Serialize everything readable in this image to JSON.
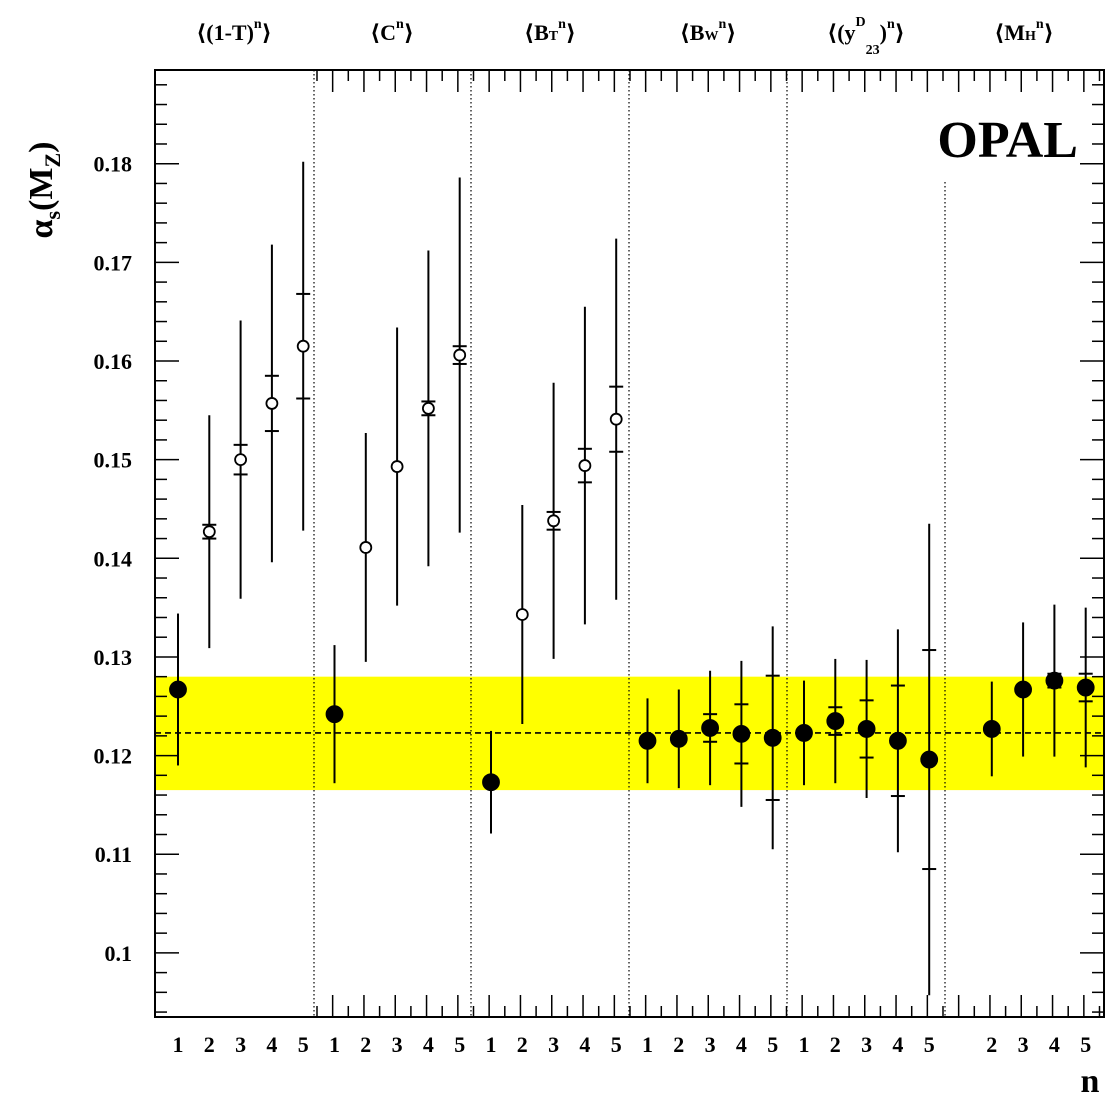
{
  "chart_data": {
    "type": "scatter",
    "title": "OPAL",
    "ylabel": "αs(MZ)",
    "xlabel": "n",
    "ylim": [
      0.0935,
      0.1895
    ],
    "yticks": [
      0.1,
      0.11,
      0.12,
      0.13,
      0.14,
      0.15,
      0.16,
      0.17,
      0.18
    ],
    "ytick_labels": [
      "0.1",
      "0.11",
      "0.12",
      "0.13",
      "0.14",
      "0.15",
      "0.16",
      "0.17",
      "0.18"
    ],
    "band": {
      "central": 0.1223,
      "low": 0.1165,
      "high": 0.128,
      "color": "#ffff00"
    },
    "colors": {
      "band": "#ffff00",
      "marker": "#000000"
    },
    "groups": [
      {
        "label": "⟨(1-T)ⁿ⟩",
        "label_parts": {
          "open": "⟨(",
          "base": "1-T",
          "close": ")",
          "sup": "n",
          "sub": "",
          "end": "⟩"
        },
        "n": [
          1,
          2,
          3,
          4,
          5
        ],
        "n_labels": [
          "1",
          "2",
          "3",
          "4",
          "5"
        ],
        "values": [
          0.1267,
          0.1427,
          0.15,
          0.1557,
          0.1615
        ],
        "stat": [
          0.0,
          0.0007,
          0.0015,
          0.0028,
          0.0053
        ],
        "total": [
          0.0077,
          0.0118,
          0.0141,
          0.0161,
          0.0187
        ],
        "marker": [
          "filled",
          "open",
          "open",
          "open",
          "open"
        ]
      },
      {
        "label": "⟨Cⁿ⟩",
        "label_parts": {
          "open": "⟨",
          "base": "C",
          "close": "",
          "sup": "n",
          "sub": "",
          "end": "⟩"
        },
        "n": [
          1,
          2,
          3,
          4,
          5
        ],
        "n_labels": [
          "1",
          "2",
          "3",
          "4",
          "5"
        ],
        "values": [
          0.1242,
          0.1411,
          0.1493,
          0.1552,
          0.1606
        ],
        "stat": [
          0.0,
          0.0,
          0.0,
          0.0007,
          0.0009
        ],
        "total": [
          0.007,
          0.0116,
          0.0141,
          0.016,
          0.018
        ],
        "marker": [
          "filled",
          "open",
          "open",
          "open",
          "open"
        ]
      },
      {
        "label": "⟨BTⁿ⟩",
        "label_parts": {
          "open": "⟨",
          "base": "B",
          "close": "",
          "sup": "n",
          "sub": "T",
          "end": "⟩"
        },
        "n": [
          1,
          2,
          3,
          4,
          5
        ],
        "n_labels": [
          "1",
          "2",
          "3",
          "4",
          "5"
        ],
        "values": [
          0.1173,
          0.1343,
          0.1438,
          0.1494,
          0.1541
        ],
        "stat": [
          0.0,
          0.0,
          0.0009,
          0.0017,
          0.0033
        ],
        "total": [
          0.0052,
          0.0111,
          0.014,
          0.0161,
          0.0183
        ],
        "marker": [
          "filled",
          "open",
          "open",
          "open",
          "open"
        ]
      },
      {
        "label": "⟨BWⁿ⟩",
        "label_parts": {
          "open": "⟨",
          "base": "B",
          "close": "",
          "sup": "n",
          "sub": "W",
          "end": "⟩"
        },
        "n": [
          1,
          2,
          3,
          4,
          5
        ],
        "n_labels": [
          "1",
          "2",
          "3",
          "4",
          "5"
        ],
        "values": [
          0.1215,
          0.1217,
          0.1228,
          0.1222,
          0.1218
        ],
        "stat": [
          0.0,
          0.0,
          0.0014,
          0.003,
          0.0063
        ],
        "total": [
          0.0043,
          0.005,
          0.0058,
          0.0074,
          0.0113
        ],
        "marker": [
          "filled",
          "filled",
          "filled",
          "filled",
          "filled"
        ]
      },
      {
        "label": "⟨(y₂₃ᴰ)ⁿ⟩",
        "label_parts": {
          "open": "⟨(",
          "base": "y",
          "close": ")",
          "sup": "n",
          "sub": "23",
          "sup_inner": "D",
          "end": "⟩"
        },
        "n": [
          1,
          2,
          3,
          4,
          5
        ],
        "n_labels": [
          "1",
          "2",
          "3",
          "4",
          "5"
        ],
        "values": [
          0.1223,
          0.1235,
          0.1227,
          0.1215,
          0.1196
        ],
        "stat": [
          0.0,
          0.0014,
          0.0029,
          0.0056,
          0.0111
        ],
        "total": [
          0.0053,
          0.0063,
          0.007,
          0.0113,
          0.0239
        ],
        "marker": [
          "filled",
          "filled",
          "filled",
          "filled",
          "filled"
        ]
      },
      {
        "label": "⟨MHⁿ⟩",
        "label_parts": {
          "open": "⟨",
          "base": "M",
          "close": "",
          "sup": "n",
          "sub": "H",
          "end": "⟩"
        },
        "n": [
          2,
          3,
          4,
          5
        ],
        "n_labels": [
          "2",
          "3",
          "4",
          "5"
        ],
        "values": [
          0.1227,
          0.1267,
          0.1276,
          0.1269
        ],
        "stat": [
          0.0,
          0.0,
          0.0007,
          0.0014
        ],
        "total": [
          0.0048,
          0.0068,
          0.0077,
          0.0081
        ],
        "marker": [
          "filled",
          "filled",
          "filled",
          "filled"
        ]
      }
    ]
  }
}
